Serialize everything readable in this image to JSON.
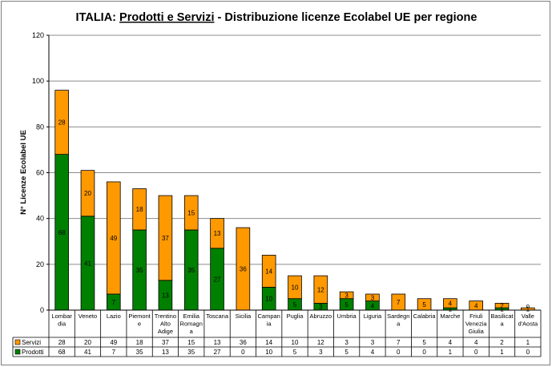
{
  "chart_data": {
    "type": "bar",
    "stacked": true,
    "title_parts": [
      "ITALIA: ",
      "Prodotti e Servizi",
      " - Distribuzione licenze Ecolabel UE  per regione"
    ],
    "ylabel": "N° Licenze  Ecolabel  UE",
    "xlabel": "",
    "ylim": [
      0,
      120
    ],
    "yticks": [
      "0",
      "20",
      "40",
      "60",
      "80",
      "100",
      "120"
    ],
    "grid": true,
    "legend": "data-table",
    "categories": [
      [
        "Lombar",
        "dia"
      ],
      [
        "Veneto"
      ],
      [
        "Lazio"
      ],
      [
        "Piemont",
        "e"
      ],
      [
        "Trentino",
        "Alto",
        "Adige"
      ],
      [
        "Emilia",
        "Romagn",
        "a"
      ],
      [
        "Toscana"
      ],
      [
        "Sicilia"
      ],
      [
        "Campan",
        "ia"
      ],
      [
        "Puglia"
      ],
      [
        "Abruzzo"
      ],
      [
        "Umbria"
      ],
      [
        "Liguria"
      ],
      [
        "Sardegn",
        "a"
      ],
      [
        "Calabria"
      ],
      [
        "Marche"
      ],
      [
        "Friuli",
        "Venezia",
        "Giulia"
      ],
      [
        "Basilicat",
        "a"
      ],
      [
        "Valle",
        "d'Aosta"
      ]
    ],
    "series": [
      {
        "name": "Prodotti",
        "color": "#008000",
        "values": [
          68,
          41,
          7,
          35,
          13,
          35,
          27,
          0,
          10,
          5,
          3,
          5,
          4,
          0,
          0,
          1,
          0,
          1,
          0
        ]
      },
      {
        "name": "Servizi",
        "color": "#ff9900",
        "values": [
          28,
          20,
          49,
          18,
          37,
          15,
          13,
          36,
          14,
          10,
          12,
          3,
          3,
          7,
          5,
          4,
          4,
          2,
          1
        ]
      }
    ]
  }
}
